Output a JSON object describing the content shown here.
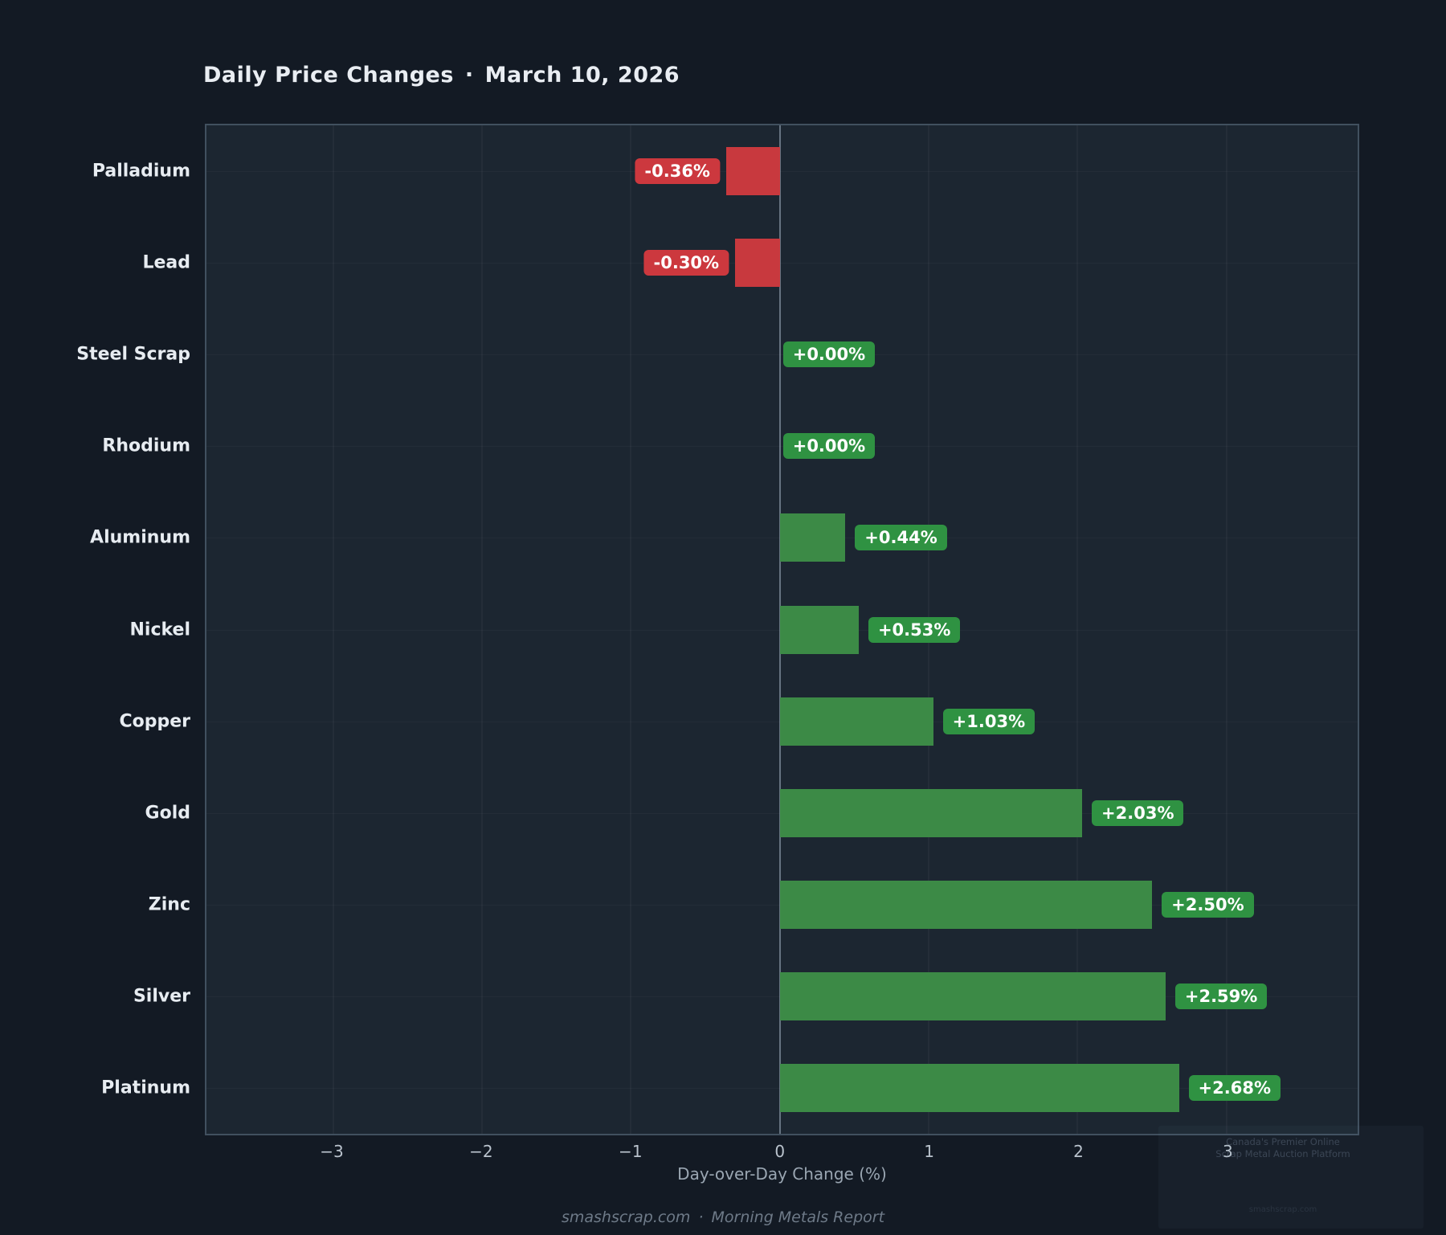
{
  "title": {
    "text": "Daily Price Changes",
    "sep": "·",
    "date": "March 10, 2026"
  },
  "chart_data": {
    "type": "bar",
    "orientation": "horizontal",
    "title": "Daily Price Changes · March 10, 2026",
    "categories": [
      "Palladium",
      "Lead",
      "Steel Scrap",
      "Rhodium",
      "Aluminum",
      "Nickel",
      "Copper",
      "Gold",
      "Zinc",
      "Silver",
      "Platinum"
    ],
    "values": [
      -0.36,
      -0.3,
      0.0,
      0.0,
      0.44,
      0.53,
      1.03,
      2.03,
      2.5,
      2.59,
      2.68
    ],
    "labels": [
      "-0.36%",
      "-0.30%",
      "+0.00%",
      "+0.00%",
      "+0.44%",
      "+0.53%",
      "+1.03%",
      "+2.03%",
      "+2.50%",
      "+2.59%",
      "+2.68%"
    ],
    "xlabel": "Day-over-Day Change (%)",
    "x_ticks": [
      "−3",
      "−2",
      "−1",
      "0",
      "1",
      "2",
      "3"
    ],
    "x_tick_values": [
      -3,
      -2,
      -1,
      0,
      1,
      2,
      3
    ],
    "xlim": [
      -3.85,
      3.88
    ],
    "grid": true,
    "legend": "none",
    "colors": {
      "positive": "#3c8a46",
      "negative": "#c8393e",
      "badge_positive": "#2f9242",
      "badge_negative": "#cc383e",
      "figure_bg": "#131a24",
      "axes_bg": "#1c2631"
    }
  },
  "footer": {
    "source": "smashscrap.com",
    "sep": "·",
    "report": "Morning Metals Report"
  },
  "watermark": {
    "line1": "Canada's Premier Online",
    "line2": "Scrap Metal Auction Platform",
    "brand": "smashscrap.com"
  }
}
